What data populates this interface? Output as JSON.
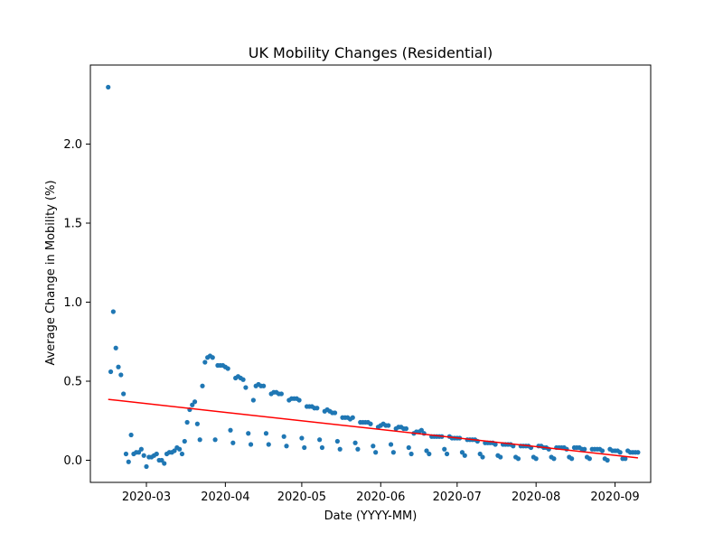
{
  "chart_data": {
    "type": "scatter",
    "title": "UK Mobility Changes (Residential)",
    "xlabel": "Date (YYYY-MM)",
    "ylabel": "Average Change in Mobility (%)",
    "x_ticks": [
      "2020-03",
      "2020-04",
      "2020-05",
      "2020-06",
      "2020-07",
      "2020-08",
      "2020-09"
    ],
    "x_tick_dates": [
      "2020-03-01",
      "2020-04-01",
      "2020-05-01",
      "2020-06-01",
      "2020-07-01",
      "2020-08-01",
      "2020-09-01"
    ],
    "y_ticks": [
      "0.0",
      "0.5",
      "1.0",
      "1.5",
      "2.0"
    ],
    "xlim": [
      "2020-02-08",
      "2020-09-15"
    ],
    "ylim": [
      -0.14,
      2.5
    ],
    "grid": false,
    "colors": {
      "points": "#1f77b4",
      "trend": "#ff0000"
    },
    "series": [
      {
        "type": "scatter",
        "x": [
          "2020-02-15",
          "2020-02-16",
          "2020-02-17",
          "2020-02-18",
          "2020-02-19",
          "2020-02-20",
          "2020-02-21",
          "2020-02-22",
          "2020-02-23",
          "2020-02-24",
          "2020-02-25",
          "2020-02-26",
          "2020-02-27",
          "2020-02-28",
          "2020-02-29",
          "2020-03-01",
          "2020-03-02",
          "2020-03-03",
          "2020-03-04",
          "2020-03-05",
          "2020-03-06",
          "2020-03-07",
          "2020-03-08",
          "2020-03-09",
          "2020-03-10",
          "2020-03-11",
          "2020-03-12",
          "2020-03-13",
          "2020-03-14",
          "2020-03-15",
          "2020-03-16",
          "2020-03-17",
          "2020-03-18",
          "2020-03-19",
          "2020-03-20",
          "2020-03-21",
          "2020-03-22",
          "2020-03-23",
          "2020-03-24",
          "2020-03-25",
          "2020-03-26",
          "2020-03-27",
          "2020-03-28",
          "2020-03-29",
          "2020-03-30",
          "2020-03-31",
          "2020-04-01",
          "2020-04-02",
          "2020-04-03",
          "2020-04-04",
          "2020-04-05",
          "2020-04-06",
          "2020-04-07",
          "2020-04-08",
          "2020-04-09",
          "2020-04-10",
          "2020-04-11",
          "2020-04-12",
          "2020-04-13",
          "2020-04-14",
          "2020-04-15",
          "2020-04-16",
          "2020-04-17",
          "2020-04-18",
          "2020-04-19",
          "2020-04-20",
          "2020-04-21",
          "2020-04-22",
          "2020-04-23",
          "2020-04-24",
          "2020-04-25",
          "2020-04-26",
          "2020-04-27",
          "2020-04-28",
          "2020-04-29",
          "2020-04-30",
          "2020-05-01",
          "2020-05-02",
          "2020-05-03",
          "2020-05-04",
          "2020-05-05",
          "2020-05-06",
          "2020-05-07",
          "2020-05-08",
          "2020-05-09",
          "2020-05-10",
          "2020-05-11",
          "2020-05-12",
          "2020-05-13",
          "2020-05-14",
          "2020-05-15",
          "2020-05-16",
          "2020-05-17",
          "2020-05-18",
          "2020-05-19",
          "2020-05-20",
          "2020-05-21",
          "2020-05-22",
          "2020-05-23",
          "2020-05-24",
          "2020-05-25",
          "2020-05-26",
          "2020-05-27",
          "2020-05-28",
          "2020-05-29",
          "2020-05-30",
          "2020-05-31",
          "2020-06-01",
          "2020-06-02",
          "2020-06-03",
          "2020-06-04",
          "2020-06-05",
          "2020-06-06",
          "2020-06-07",
          "2020-06-08",
          "2020-06-09",
          "2020-06-10",
          "2020-06-11",
          "2020-06-12",
          "2020-06-13",
          "2020-06-14",
          "2020-06-15",
          "2020-06-16",
          "2020-06-17",
          "2020-06-18",
          "2020-06-19",
          "2020-06-20",
          "2020-06-21",
          "2020-06-22",
          "2020-06-23",
          "2020-06-24",
          "2020-06-25",
          "2020-06-26",
          "2020-06-27",
          "2020-06-28",
          "2020-06-29",
          "2020-06-30",
          "2020-07-01",
          "2020-07-02",
          "2020-07-03",
          "2020-07-04",
          "2020-07-05",
          "2020-07-06",
          "2020-07-07",
          "2020-07-08",
          "2020-07-09",
          "2020-07-10",
          "2020-07-11",
          "2020-07-12",
          "2020-07-13",
          "2020-07-14",
          "2020-07-15",
          "2020-07-16",
          "2020-07-17",
          "2020-07-18",
          "2020-07-19",
          "2020-07-20",
          "2020-07-21",
          "2020-07-22",
          "2020-07-23",
          "2020-07-24",
          "2020-07-25",
          "2020-07-26",
          "2020-07-27",
          "2020-07-28",
          "2020-07-29",
          "2020-07-30",
          "2020-07-31",
          "2020-08-01",
          "2020-08-02",
          "2020-08-03",
          "2020-08-04",
          "2020-08-05",
          "2020-08-06",
          "2020-08-07",
          "2020-08-08",
          "2020-08-09",
          "2020-08-10",
          "2020-08-11",
          "2020-08-12",
          "2020-08-13",
          "2020-08-14",
          "2020-08-15",
          "2020-08-16",
          "2020-08-17",
          "2020-08-18",
          "2020-08-19",
          "2020-08-20",
          "2020-08-21",
          "2020-08-22",
          "2020-08-23",
          "2020-08-24",
          "2020-08-25",
          "2020-08-26",
          "2020-08-27",
          "2020-08-28",
          "2020-08-29",
          "2020-08-30",
          "2020-08-31",
          "2020-09-01",
          "2020-09-02",
          "2020-09-03",
          "2020-09-04",
          "2020-09-05",
          "2020-09-06",
          "2020-09-07",
          "2020-09-08",
          "2020-09-09",
          "2020-09-10"
        ],
        "y": [
          2.36,
          0.56,
          0.94,
          0.71,
          0.59,
          0.54,
          0.42,
          0.04,
          -0.01,
          0.16,
          0.04,
          0.05,
          0.05,
          0.07,
          0.03,
          -0.04,
          0.02,
          0.02,
          0.03,
          0.04,
          0.0,
          0.0,
          -0.02,
          0.04,
          0.05,
          0.05,
          0.06,
          0.08,
          0.07,
          0.04,
          0.12,
          0.24,
          0.32,
          0.35,
          0.37,
          0.23,
          0.13,
          0.47,
          0.62,
          0.65,
          0.66,
          0.65,
          0.13,
          0.6,
          0.6,
          0.6,
          0.59,
          0.58,
          0.19,
          0.11,
          0.52,
          0.53,
          0.52,
          0.51,
          0.46,
          0.17,
          0.1,
          0.38,
          0.47,
          0.48,
          0.47,
          0.47,
          0.17,
          0.1,
          0.42,
          0.43,
          0.43,
          0.42,
          0.42,
          0.15,
          0.09,
          0.38,
          0.39,
          0.39,
          0.39,
          0.38,
          0.14,
          0.08,
          0.34,
          0.34,
          0.34,
          0.33,
          0.33,
          0.13,
          0.08,
          0.31,
          0.32,
          0.31,
          0.3,
          0.3,
          0.12,
          0.07,
          0.27,
          0.27,
          0.27,
          0.26,
          0.27,
          0.11,
          0.07,
          0.24,
          0.24,
          0.24,
          0.24,
          0.23,
          0.09,
          0.05,
          0.21,
          0.22,
          0.23,
          0.22,
          0.22,
          0.1,
          0.05,
          0.2,
          0.21,
          0.21,
          0.2,
          0.2,
          0.08,
          0.04,
          0.17,
          0.18,
          0.18,
          0.19,
          0.17,
          0.06,
          0.04,
          0.15,
          0.15,
          0.15,
          0.15,
          0.15,
          0.07,
          0.04,
          0.15,
          0.14,
          0.14,
          0.14,
          0.14,
          0.05,
          0.03,
          0.13,
          0.13,
          0.13,
          0.13,
          0.12,
          0.04,
          0.02,
          0.11,
          0.11,
          0.11,
          0.11,
          0.1,
          0.03,
          0.02,
          0.1,
          0.1,
          0.1,
          0.1,
          0.09,
          0.02,
          0.01,
          0.09,
          0.09,
          0.09,
          0.09,
          0.08,
          0.02,
          0.01,
          0.09,
          0.09,
          0.08,
          0.08,
          0.07,
          0.02,
          0.01,
          0.08,
          0.08,
          0.08,
          0.08,
          0.07,
          0.02,
          0.01,
          0.08,
          0.08,
          0.08,
          0.07,
          0.07,
          0.02,
          0.01,
          0.07,
          0.07,
          0.07,
          0.07,
          0.06,
          0.01,
          0.0,
          0.07,
          0.06,
          0.06,
          0.06,
          0.05,
          0.01,
          0.01,
          0.06,
          0.05,
          0.05,
          0.05,
          0.05
        ]
      },
      {
        "type": "line",
        "x": [
          "2020-02-15",
          "2020-09-10"
        ],
        "y": [
          0.385,
          0.015
        ]
      }
    ]
  }
}
